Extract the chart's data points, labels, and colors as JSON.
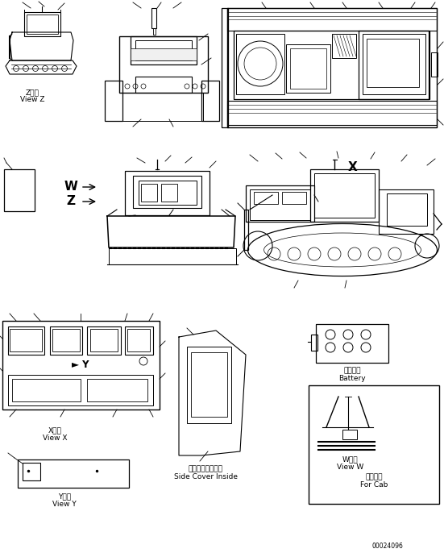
{
  "bg_color": "#ffffff",
  "line_color": "#000000",
  "figure_width": 5.51,
  "figure_height": 6.86,
  "dpi": 100,
  "labels": {
    "view_z_jp": "Z　視",
    "view_z_en": "View Z",
    "view_x_jp": "X　視",
    "view_x_en": "View X",
    "view_y_jp": "Y　視",
    "view_y_en": "View Y",
    "view_w_jp": "W　視",
    "view_w_en": "View W",
    "side_cover_jp": "サイドカバー内側",
    "side_cover_en": "Side Cover Inside",
    "battery_jp": "バッテリ",
    "battery_en": "Battery",
    "for_cab_jp": "キャブ用",
    "for_cab_en": "For Cab",
    "W_label": "W",
    "Z_label": "Z",
    "X_label": "X",
    "part_number": "00024096"
  },
  "font_size_tiny": 5.5,
  "font_size_small": 6.5,
  "font_size_medium": 8.5,
  "font_size_large": 11
}
